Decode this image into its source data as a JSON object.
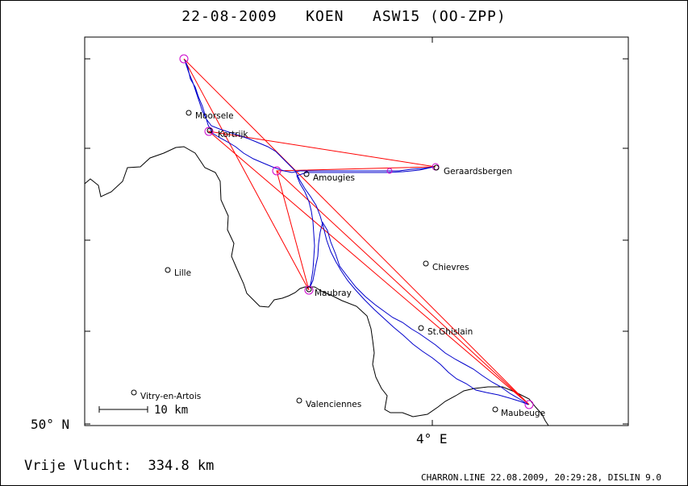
{
  "title": "22-08-2009   KOEN   ASW15 (OO-ZPP)",
  "axes": {
    "lat_label": "50° N",
    "lon_label": "4° E"
  },
  "scale_label": "10 km",
  "distance_text": "Vrije Vlucht:  334.8 km",
  "footer": "CHARRON.LINE 22.08.2009, 20:29:28, DISLIN 9.0",
  "colors": {
    "track": "#0000cc",
    "task": "#ff0000",
    "turnpoint": "#cc00cc",
    "border": "#000000"
  },
  "places": [
    {
      "name": "Moorsele"
    },
    {
      "name": "Kortrijk"
    },
    {
      "name": "Amougies"
    },
    {
      "name": "Geraardsbergen"
    },
    {
      "name": "Lille"
    },
    {
      "name": "Chievres"
    },
    {
      "name": "Maubray"
    },
    {
      "name": "St.Ghislain"
    },
    {
      "name": "Vitry-en-Artois"
    },
    {
      "name": "Valenciennes"
    },
    {
      "name": "Maubeuge"
    }
  ]
}
